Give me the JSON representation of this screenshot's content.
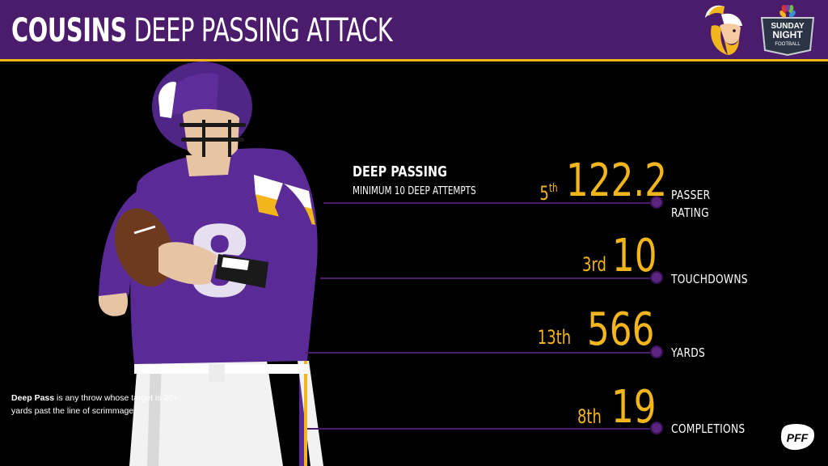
{
  "header": {
    "title_bold": "COUSINS",
    "title_rest": "DEEP PASSING ATTACK",
    "logo_vikings": "vikings-logo",
    "logo_snf_line1": "SUNDAY",
    "logo_snf_line2": "NIGHT",
    "logo_snf_line3": "FOOTBALL"
  },
  "section": {
    "heading": "DEEP PASSING",
    "subheading": "MINIMUM 10 DEEP ATTEMPTS"
  },
  "stats": [
    {
      "rank_num": "5",
      "rank_suffix": "th",
      "value": "122.2",
      "label_line1": "PASSER",
      "label_line2": "RATING"
    },
    {
      "rank_num": "3rd",
      "rank_suffix": "",
      "value": "10",
      "label_line1": "TOUCHDOWNS",
      "label_line2": ""
    },
    {
      "rank_num": "13th",
      "rank_suffix": "",
      "value": "566",
      "label_line1": "YARDS",
      "label_line2": ""
    },
    {
      "rank_num": "8th",
      "rank_suffix": "",
      "value": "19",
      "label_line1": "COMPLETIONS",
      "label_line2": ""
    }
  ],
  "footnote": {
    "term": "Deep Pass",
    "text": " is any throw whose target is 20+ yards past the line of scrimmage."
  },
  "brand": {
    "pff": "PFF"
  },
  "colors": {
    "header_purple": "#4a1c6b",
    "gold": "#f2b51b",
    "line_purple": "#4a1c6b",
    "jersey_purple": "#5a2a96"
  }
}
